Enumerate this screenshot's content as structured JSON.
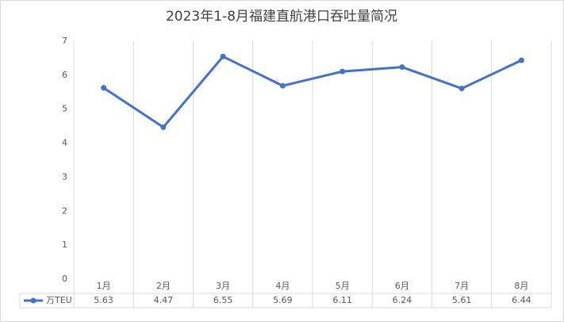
{
  "chart_data": {
    "type": "line",
    "title": "2023年1-8月福建直航港口吞吐量简况",
    "categories": [
      "1月",
      "2月",
      "3月",
      "4月",
      "5月",
      "6月",
      "7月",
      "8月"
    ],
    "series": [
      {
        "name": "万TEU",
        "color": "#4472c4",
        "values": [
          5.63,
          4.47,
          6.55,
          5.69,
          6.11,
          6.24,
          5.61,
          6.44
        ]
      }
    ],
    "ylim": [
      0,
      7
    ],
    "yticks": [
      0,
      1,
      2,
      3,
      4,
      5,
      6,
      7
    ]
  }
}
